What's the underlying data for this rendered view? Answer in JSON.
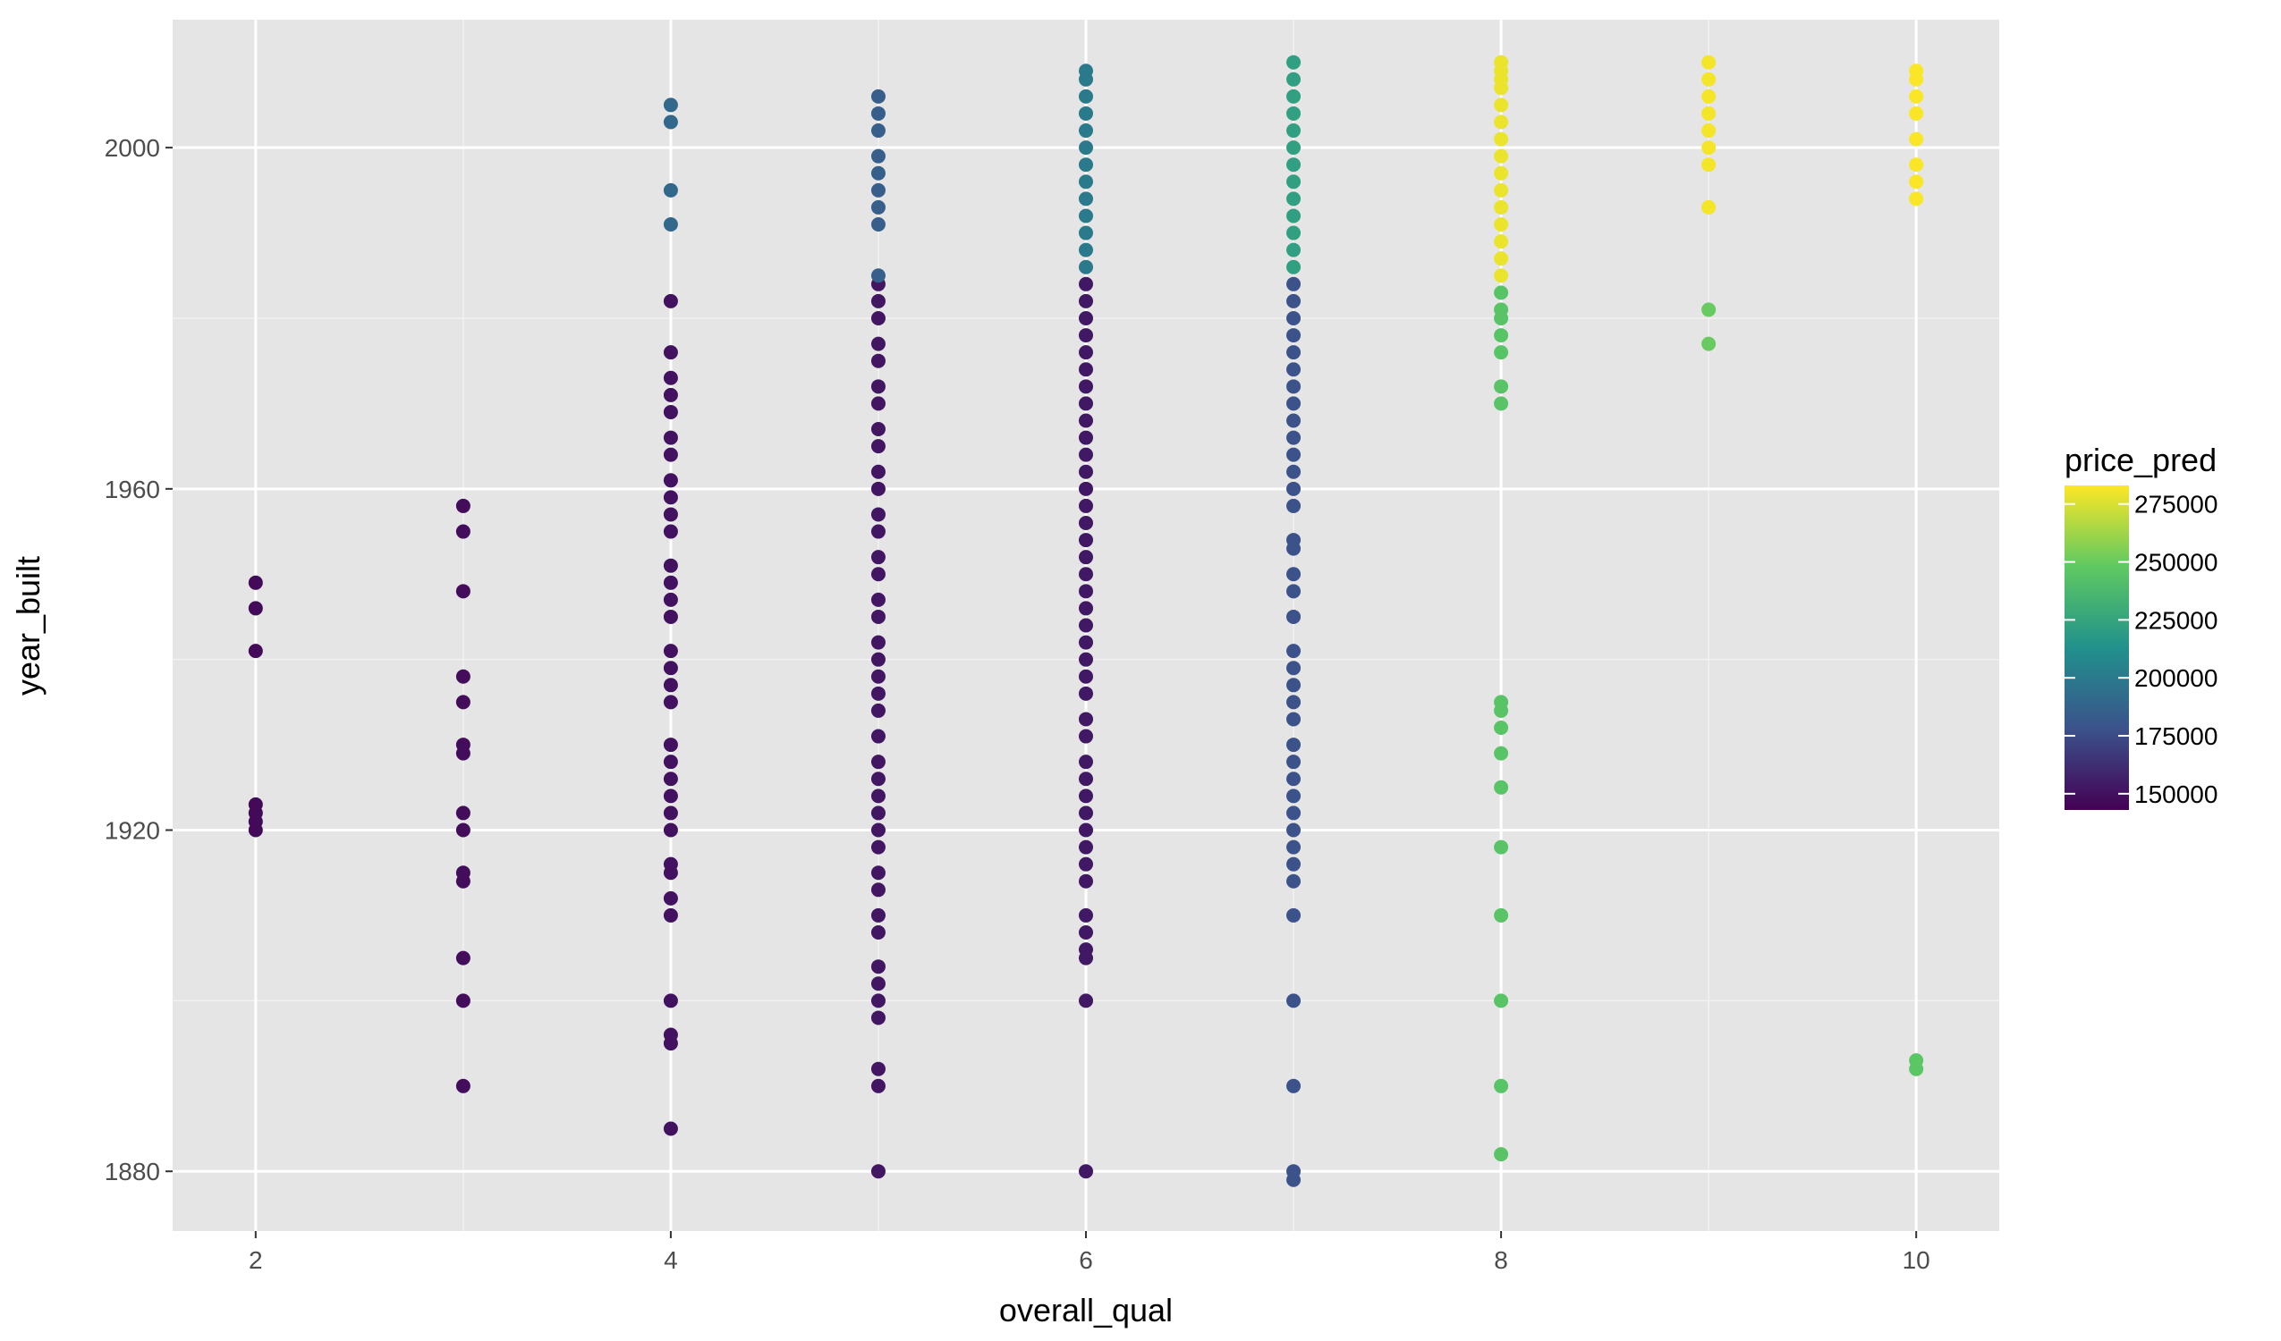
{
  "chart_data": {
    "type": "scatter",
    "title": "",
    "xlabel": "overall_qual",
    "ylabel": "year_built",
    "xlim": [
      1.6,
      10.4
    ],
    "ylim": [
      1873,
      2015
    ],
    "x_ticks": [
      2,
      4,
      6,
      8,
      10
    ],
    "y_ticks": [
      1880,
      1920,
      1960,
      2000
    ],
    "grid": true,
    "background": "#e5e5e5",
    "legend": {
      "title": "price_pred",
      "placement": "right",
      "min": 143000,
      "max": 283000,
      "ticks": [
        150000,
        175000,
        200000,
        225000,
        250000,
        275000
      ]
    },
    "color_scale": "viridis",
    "groups": [
      {
        "x": 2,
        "price": 147000,
        "years": [
          1920,
          1921,
          1922,
          1923,
          1941,
          1946,
          1949
        ]
      },
      {
        "x": 3,
        "price": 148000,
        "years": [
          1890,
          1900,
          1905,
          1914,
          1915,
          1920,
          1922,
          1929,
          1930,
          1935,
          1938,
          1948,
          1955,
          1958
        ]
      },
      {
        "x": 4,
        "price": 150000,
        "years": [
          1885,
          1895,
          1896,
          1900,
          1910,
          1912,
          1915,
          1916,
          1920,
          1922,
          1924,
          1926,
          1928,
          1930,
          1935,
          1937,
          1939,
          1941,
          1945,
          1947,
          1949,
          1951,
          1955,
          1957,
          1959,
          1961,
          1964,
          1966,
          1969,
          1971,
          1973,
          1976,
          1982
        ]
      },
      {
        "x": 4,
        "price": 190000,
        "years": [
          1991,
          1995,
          2003,
          2005
        ]
      },
      {
        "x": 5,
        "price": 152000,
        "years": [
          1880,
          1890,
          1892,
          1898,
          1900,
          1902,
          1904,
          1908,
          1910,
          1913,
          1915,
          1918,
          1920,
          1922,
          1924,
          1926,
          1928,
          1931,
          1934,
          1936,
          1938,
          1940,
          1942,
          1945,
          1947,
          1950,
          1952,
          1955,
          1957,
          1960,
          1962,
          1965,
          1967,
          1970,
          1972,
          1975,
          1977,
          1980,
          1982,
          1984
        ]
      },
      {
        "x": 5,
        "price": 185000,
        "years": [
          1985,
          1991,
          1993,
          1995,
          1997,
          1999,
          2002,
          2004,
          2006
        ]
      },
      {
        "x": 6,
        "price": 153000,
        "years": [
          1880,
          1900,
          1905,
          1906,
          1908,
          1910,
          1914,
          1916,
          1918,
          1920,
          1922,
          1924,
          1926,
          1928,
          1931,
          1933,
          1936,
          1938,
          1940,
          1942,
          1944,
          1946,
          1948,
          1950,
          1952,
          1954,
          1956,
          1958,
          1960,
          1962,
          1964,
          1966,
          1968,
          1970,
          1972,
          1974,
          1976,
          1978,
          1980,
          1982,
          1984
        ]
      },
      {
        "x": 6,
        "price": 200000,
        "years": [
          1986,
          1988,
          1990,
          1992,
          1994,
          1996,
          1998,
          2000,
          2002,
          2004,
          2006,
          2008,
          2009
        ]
      },
      {
        "x": 7,
        "price": 178000,
        "years": [
          1879,
          1880,
          1890,
          1900,
          1910,
          1914,
          1916,
          1918,
          1920,
          1922,
          1924,
          1926,
          1928,
          1930,
          1933,
          1935,
          1937,
          1939,
          1941,
          1945,
          1948,
          1950,
          1953,
          1954,
          1958,
          1960,
          1962,
          1964,
          1966,
          1968,
          1970,
          1972,
          1974,
          1976,
          1978,
          1980,
          1982,
          1984
        ]
      },
      {
        "x": 7,
        "price": 222000,
        "years": [
          1986,
          1988,
          1990,
          1992,
          1994,
          1996,
          1998,
          2000,
          2002,
          2004,
          2006,
          2008,
          2010
        ]
      },
      {
        "x": 8,
        "price": 245000,
        "years": [
          1882,
          1890,
          1900,
          1910,
          1918,
          1925,
          1929,
          1932,
          1934,
          1935,
          1970,
          1972,
          1976,
          1978,
          1980,
          1981,
          1983
        ]
      },
      {
        "x": 8,
        "price": 279000,
        "years": [
          1985,
          1987,
          1989,
          1991,
          1993,
          1995,
          1997,
          1999,
          2001,
          2003,
          2005,
          2007,
          2008,
          2009,
          2010
        ]
      },
      {
        "x": 9,
        "price": 250000,
        "years": [
          1977,
          1981
        ]
      },
      {
        "x": 9,
        "price": 281000,
        "years": [
          1993,
          1998,
          2000,
          2002,
          2004,
          2006,
          2008,
          2010
        ]
      },
      {
        "x": 10,
        "price": 246000,
        "years": [
          1892,
          1893
        ]
      },
      {
        "x": 10,
        "price": 282000,
        "years": [
          1994,
          1996,
          1998,
          2001,
          2004,
          2006,
          2008,
          2009
        ]
      }
    ]
  }
}
